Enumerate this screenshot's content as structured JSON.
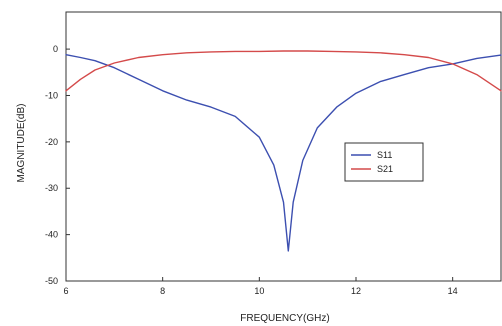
{
  "chart_data": {
    "type": "line",
    "title": "",
    "xlabel": "FREQUENCY(GHz)",
    "ylabel": "MAGNITUDE(dB)",
    "xlim": [
      6,
      15
    ],
    "ylim": [
      -50,
      8
    ],
    "xticks": [
      6,
      8,
      10,
      12,
      14
    ],
    "yticks": [
      0,
      -10,
      -20,
      -30,
      -40,
      -50
    ],
    "grid": false,
    "legend_position": "center-right",
    "series": [
      {
        "name": "S11",
        "color": "#3c4fb0",
        "x": [
          6.0,
          6.3,
          6.6,
          7.0,
          7.5,
          8.0,
          8.5,
          9.0,
          9.5,
          10.0,
          10.3,
          10.5,
          10.6,
          10.7,
          10.9,
          11.2,
          11.6,
          12.0,
          12.5,
          13.0,
          13.5,
          14.0,
          14.5,
          15.0
        ],
        "y": [
          -1.2,
          -1.8,
          -2.5,
          -4.0,
          -6.5,
          -9.0,
          -11.0,
          -12.5,
          -14.5,
          -19.0,
          -25.0,
          -33.0,
          -43.5,
          -33.0,
          -24.0,
          -17.0,
          -12.5,
          -9.5,
          -7.0,
          -5.5,
          -4.0,
          -3.2,
          -2.0,
          -1.3
        ]
      },
      {
        "name": "S21",
        "color": "#d44a4a",
        "x": [
          6.0,
          6.3,
          6.6,
          7.0,
          7.5,
          8.0,
          8.5,
          9.0,
          9.5,
          10.0,
          10.5,
          11.0,
          11.5,
          12.0,
          12.5,
          13.0,
          13.5,
          14.0,
          14.5,
          15.0
        ],
        "y": [
          -9.0,
          -6.5,
          -4.5,
          -3.0,
          -1.8,
          -1.2,
          -0.8,
          -0.6,
          -0.5,
          -0.5,
          -0.4,
          -0.4,
          -0.5,
          -0.6,
          -0.8,
          -1.2,
          -1.8,
          -3.2,
          -5.5,
          -9.0
        ]
      }
    ]
  }
}
